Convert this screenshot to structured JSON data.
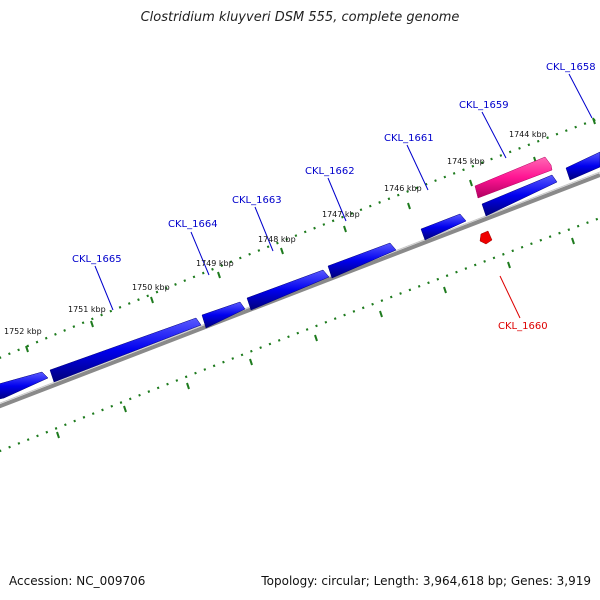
{
  "title": "Clostridium kluyveri DSM 555, complete genome",
  "footer": {
    "accession": "Accession: NC_009706",
    "summary": "Topology: circular; Length: 3,964,618 bp; Genes: 3,919"
  },
  "colors": {
    "forward_gene": "#0000ee",
    "reverse_gene": "#ff0000",
    "highlight_gene": "#ff1493",
    "backbone": "#8a8a8a",
    "tick": "#1e7b1e",
    "gene_label_forward": "#0000cc",
    "gene_label_reverse": "#dd0000"
  },
  "tick_labels": [
    "1752 kbp",
    "1751 kbp",
    "1750 kbp",
    "1749 kbp",
    "1748 kbp",
    "1747 kbp",
    "1746 kbp",
    "1745 kbp",
    "1744 kbp"
  ],
  "gene_labels_forward": [
    "CKL_1665",
    "CKL_1664",
    "CKL_1663",
    "CKL_1662",
    "CKL_1661",
    "CKL_1659",
    "CKL_1658"
  ],
  "gene_labels_reverse": [
    "CKL_1660"
  ]
}
